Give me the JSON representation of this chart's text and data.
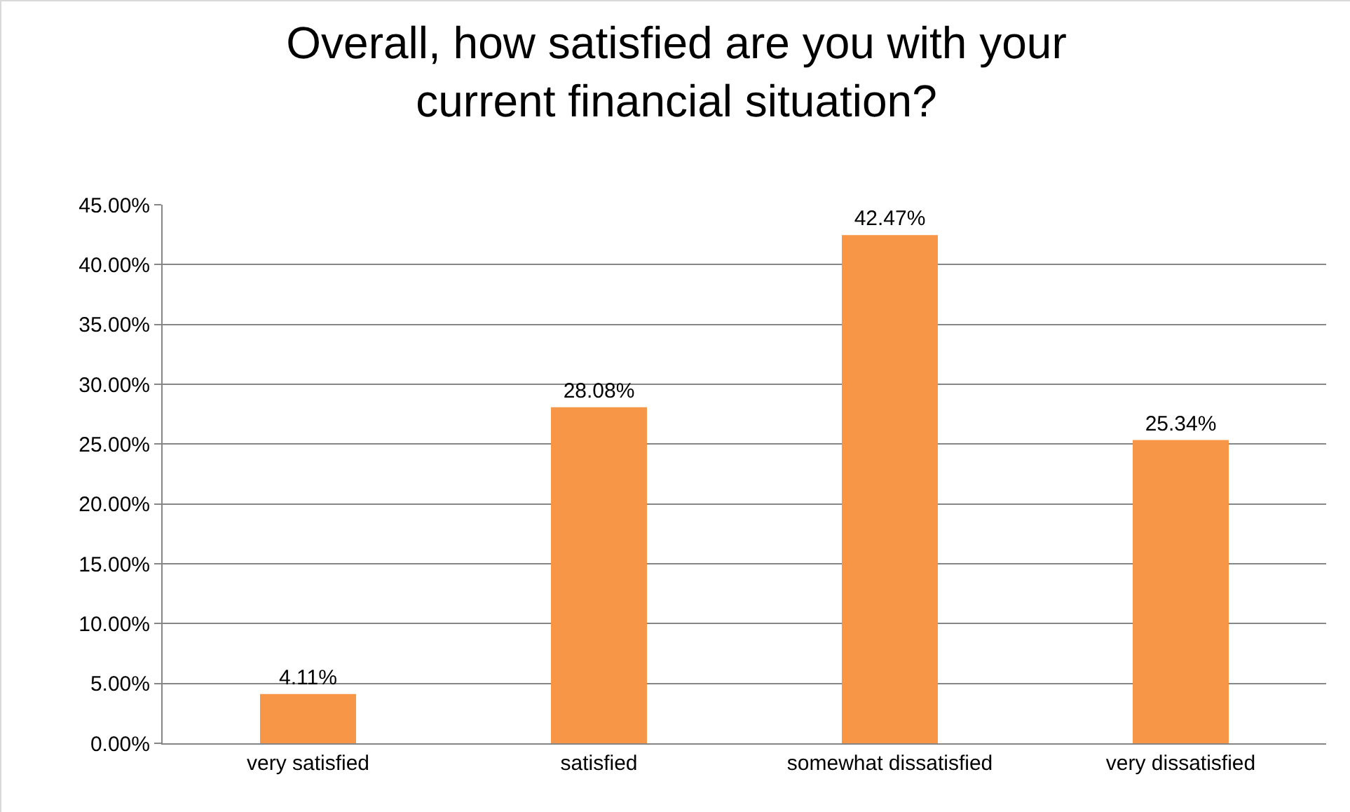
{
  "chart_data": {
    "type": "bar",
    "title": "Overall, how satisfied are you with your current financial situation?",
    "categories": [
      "very satisfied",
      "satisfied",
      "somewhat dissatisfied",
      "very dissatisfied"
    ],
    "values": [
      4.11,
      28.08,
      42.47,
      25.34
    ],
    "value_labels": [
      "4.11%",
      "28.08%",
      "42.47%",
      "25.34%"
    ],
    "color": "#f79646",
    "ylim": [
      0,
      45
    ],
    "yticks": [
      {
        "value": 0,
        "label": "0.00%"
      },
      {
        "value": 5,
        "label": "5.00%"
      },
      {
        "value": 10,
        "label": "10.00%"
      },
      {
        "value": 15,
        "label": "15.00%"
      },
      {
        "value": 20,
        "label": "20.00%"
      },
      {
        "value": 25,
        "label": "25.00%"
      },
      {
        "value": 30,
        "label": "30.00%"
      },
      {
        "value": 35,
        "label": "35.00%"
      },
      {
        "value": 40,
        "label": "40.00%"
      },
      {
        "value": 45,
        "label": "45.00%"
      }
    ],
    "grid": "y",
    "legend": false
  }
}
